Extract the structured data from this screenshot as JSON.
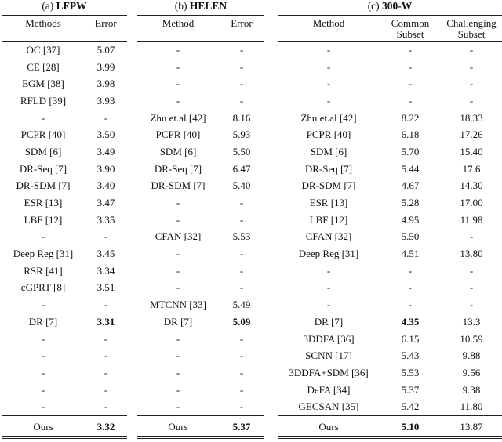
{
  "page": {
    "background": "#ffffff",
    "text_color": "#111111",
    "rule_color": "#222222"
  },
  "tables": [
    {
      "id": "lfpw",
      "caption_prefix": "(a)",
      "caption_title": "LFPW",
      "columns": [
        "Methods",
        "Error"
      ],
      "rows": [
        {
          "cells": [
            "OC [37]",
            "5.07"
          ]
        },
        {
          "cells": [
            "CE [28]",
            "3.99"
          ]
        },
        {
          "cells": [
            "EGM [38]",
            "3.98"
          ]
        },
        {
          "cells": [
            "RFLD [39]",
            "3.93"
          ]
        },
        {
          "cells": [
            "-",
            "-"
          ]
        },
        {
          "cells": [
            "PCPR [40]",
            "3.50"
          ]
        },
        {
          "cells": [
            "SDM [6]",
            "3.49"
          ]
        },
        {
          "cells": [
            "DR-Seq [7]",
            "3.90"
          ]
        },
        {
          "cells": [
            "DR-SDM [7]",
            "3.40"
          ]
        },
        {
          "cells": [
            "ESR [13]",
            "3.47"
          ]
        },
        {
          "cells": [
            "LBF [12]",
            "3.35"
          ]
        },
        {
          "cells": [
            "-",
            "-"
          ]
        },
        {
          "cells": [
            "Deep Reg [31]",
            "3.45"
          ]
        },
        {
          "cells": [
            "RSR [41]",
            "3.34"
          ]
        },
        {
          "cells": [
            "cGPRT [8]",
            "3.51"
          ]
        },
        {
          "cells": [
            "-",
            "-"
          ]
        },
        {
          "cells": [
            "DR [7]",
            "3.31"
          ],
          "bold_cols": [
            1
          ]
        },
        {
          "cells": [
            "-",
            "-"
          ]
        },
        {
          "cells": [
            "-",
            "-"
          ]
        },
        {
          "cells": [
            "-",
            "-"
          ]
        },
        {
          "cells": [
            "-",
            "-"
          ]
        },
        {
          "cells": [
            "-",
            "-"
          ]
        }
      ],
      "ours": {
        "cells": [
          "Ours",
          "3.32"
        ],
        "bold_cols": [
          1
        ]
      }
    },
    {
      "id": "helen",
      "caption_prefix": "(b)",
      "caption_title": "HELEN",
      "columns": [
        "Method",
        "Error"
      ],
      "rows": [
        {
          "cells": [
            "-",
            "-"
          ]
        },
        {
          "cells": [
            "-",
            "-"
          ]
        },
        {
          "cells": [
            "-",
            "-"
          ]
        },
        {
          "cells": [
            "-",
            "-"
          ]
        },
        {
          "cells": [
            "Zhu et.al [42]",
            "8.16"
          ]
        },
        {
          "cells": [
            "PCPR [40]",
            "5.93"
          ]
        },
        {
          "cells": [
            "SDM [6]",
            "5.50"
          ]
        },
        {
          "cells": [
            "DR-Seq [7]",
            "6.47"
          ]
        },
        {
          "cells": [
            "DR-SDM [7]",
            "5.40"
          ]
        },
        {
          "cells": [
            "-",
            "-"
          ]
        },
        {
          "cells": [
            "-",
            "-"
          ]
        },
        {
          "cells": [
            "CFAN [32]",
            "5.53"
          ]
        },
        {
          "cells": [
            "-",
            "-"
          ]
        },
        {
          "cells": [
            "-",
            "-"
          ]
        },
        {
          "cells": [
            "-",
            "-"
          ]
        },
        {
          "cells": [
            "MTCNN [33]",
            "5.49"
          ]
        },
        {
          "cells": [
            "DR [7]",
            "5.09"
          ],
          "bold_cols": [
            1
          ]
        },
        {
          "cells": [
            "-",
            "-"
          ]
        },
        {
          "cells": [
            "-",
            "-"
          ]
        },
        {
          "cells": [
            "-",
            "-"
          ]
        },
        {
          "cells": [
            "-",
            "-"
          ]
        },
        {
          "cells": [
            "-",
            "-"
          ]
        }
      ],
      "ours": {
        "cells": [
          "Ours",
          "5.37"
        ],
        "bold_cols": [
          1
        ]
      }
    },
    {
      "id": "300w",
      "caption_prefix": "(c)",
      "caption_title": "300-W",
      "columns": [
        "Method",
        "Common Subset",
        "Challenging Subset"
      ],
      "rows": [
        {
          "cells": [
            "-",
            "-",
            "-"
          ]
        },
        {
          "cells": [
            "-",
            "-",
            "-"
          ]
        },
        {
          "cells": [
            "-",
            "-",
            "-"
          ]
        },
        {
          "cells": [
            "-",
            "-",
            "-"
          ]
        },
        {
          "cells": [
            "Zhu et.al [42]",
            "8.22",
            "18.33"
          ]
        },
        {
          "cells": [
            "PCPR [40]",
            "6.18",
            "17.26"
          ]
        },
        {
          "cells": [
            "SDM [6]",
            "5.70",
            "15.40"
          ]
        },
        {
          "cells": [
            "DR-Seq [7]",
            "5.44",
            "17.6"
          ]
        },
        {
          "cells": [
            "DR-SDM [7]",
            "4.67",
            "14.30"
          ]
        },
        {
          "cells": [
            "ESR [13]",
            "5.28",
            "17.00"
          ]
        },
        {
          "cells": [
            "LBF [12]",
            "4.95",
            "11.98"
          ]
        },
        {
          "cells": [
            "CFAN [32]",
            "5.50",
            "-"
          ]
        },
        {
          "cells": [
            "Deep Reg [31]",
            "4.51",
            "13.80"
          ]
        },
        {
          "cells": [
            "-",
            "-",
            "-"
          ]
        },
        {
          "cells": [
            "-",
            "-",
            "-"
          ]
        },
        {
          "cells": [
            "-",
            "-",
            "-"
          ]
        },
        {
          "cells": [
            "DR [7]",
            "4.35",
            "13.3"
          ],
          "bold_cols": [
            1
          ]
        },
        {
          "cells": [
            "3DDFA [36]",
            "6.15",
            "10.59"
          ]
        },
        {
          "cells": [
            "SCNN [17]",
            "5.43",
            "9.88"
          ]
        },
        {
          "cells": [
            "3DDFA+SDM [36]",
            "5.53",
            "9.56"
          ]
        },
        {
          "cells": [
            "DeFA [34]",
            "5.37",
            "9.38"
          ]
        },
        {
          "cells": [
            "GECSAN [35]",
            "5.42",
            "11.80"
          ]
        }
      ],
      "ours": {
        "cells": [
          "Ours",
          "5.10",
          "13.87"
        ],
        "bold_cols": [
          1
        ]
      }
    }
  ]
}
